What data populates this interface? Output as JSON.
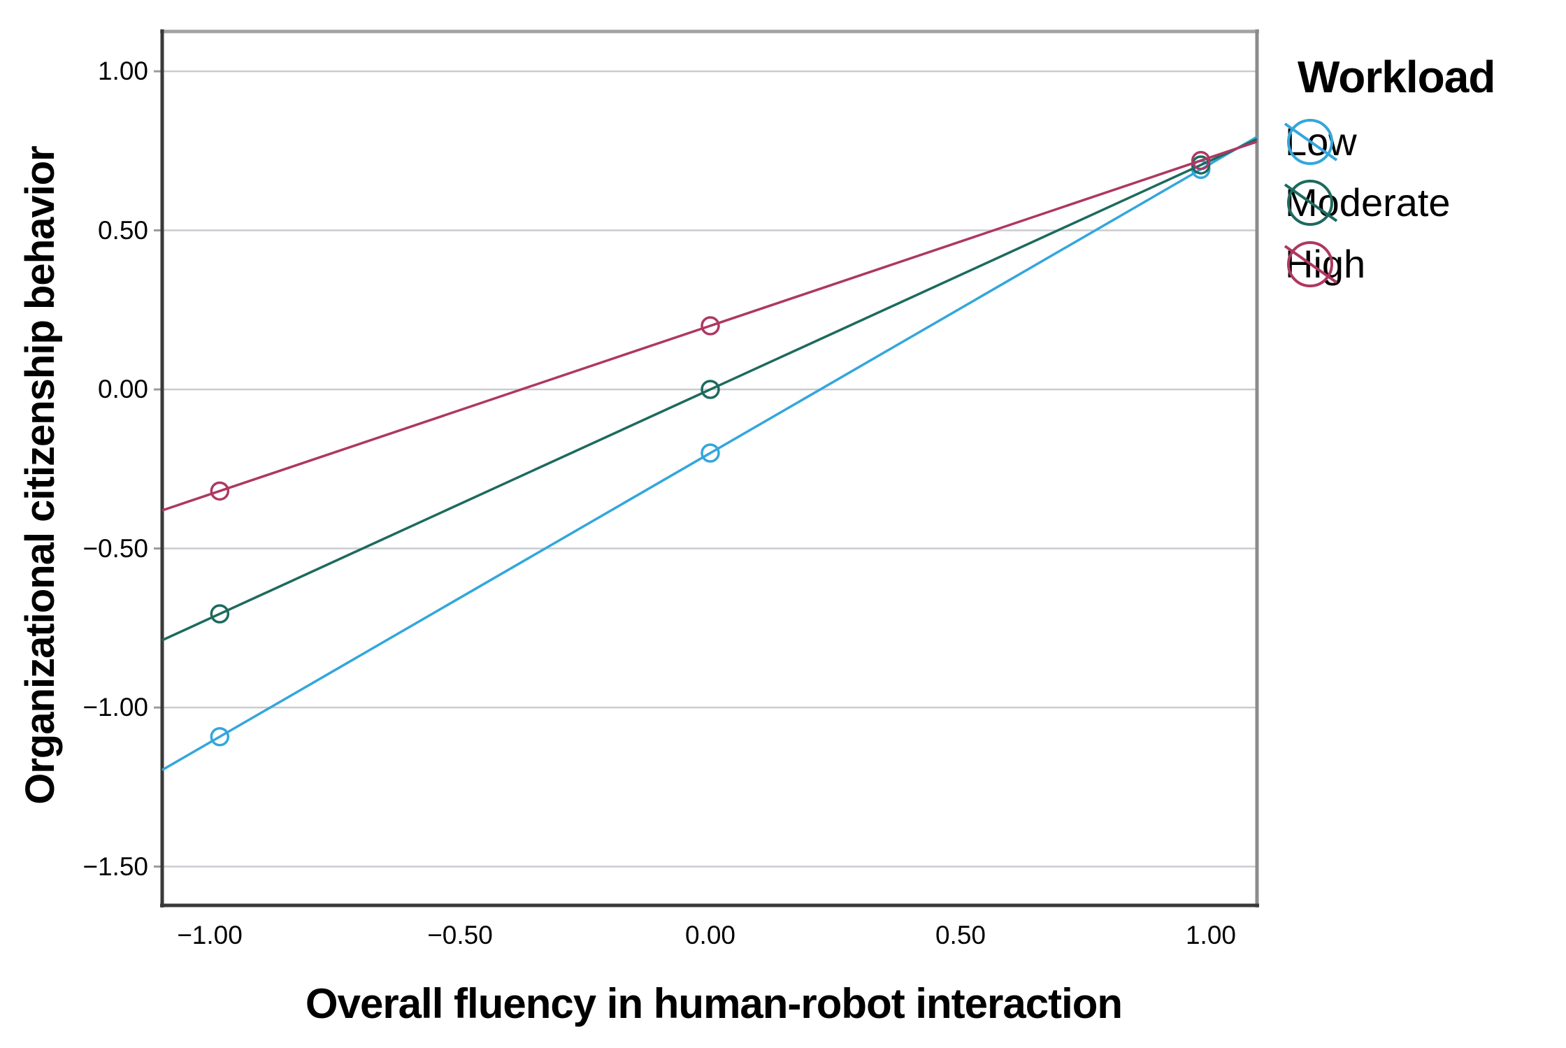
{
  "chart_data": {
    "type": "line",
    "title": "",
    "xlabel": "Overall fluency in human-robot interaction",
    "ylabel": "Organizational citizenship behavior",
    "legend_title": "Workload",
    "legend_position": "right-top",
    "grid": "horizontal",
    "x": [
      -1,
      0,
      1
    ],
    "series": [
      {
        "name": "Low",
        "color": "#33A6DC",
        "values": [
          -1.11,
          -0.2,
          0.71
        ]
      },
      {
        "name": "Moderate",
        "color": "#1D6A5E",
        "values": [
          -0.72,
          0.0,
          0.72
        ]
      },
      {
        "name": "High",
        "color": "#AD3862",
        "values": [
          -0.33,
          0.2,
          0.73
        ]
      }
    ],
    "marker_x": [
      -0.98,
      0,
      0.98
    ],
    "x_ticks": [
      {
        "value": -1.0,
        "label": "−1.00"
      },
      {
        "value": -0.5,
        "label": "−0.50"
      },
      {
        "value": 0.0,
        "label": "0.00"
      },
      {
        "value": 0.5,
        "label": "0.50"
      },
      {
        "value": 1.0,
        "label": "1.00"
      }
    ],
    "y_ticks": [
      {
        "value": 1.0,
        "label": "1.00"
      },
      {
        "value": 0.5,
        "label": "0.50"
      },
      {
        "value": 0.0,
        "label": "0.00"
      },
      {
        "value": -0.5,
        "label": "−0.50"
      },
      {
        "value": -1.0,
        "label": "−1.00"
      },
      {
        "value": -1.5,
        "label": "−1.50"
      }
    ],
    "xlim": [
      -1.095,
      1.092
    ],
    "ylim": [
      -1.62,
      1.13
    ],
    "colors": {
      "background": "#FFFFFF",
      "gridline": "#C9CCD0",
      "axis_dark": "#3A3A3A",
      "frame_top": "#A3A3A3",
      "frame_right": "#8C8C8C",
      "tick": "#9B9B9B",
      "text": "#000000"
    }
  }
}
